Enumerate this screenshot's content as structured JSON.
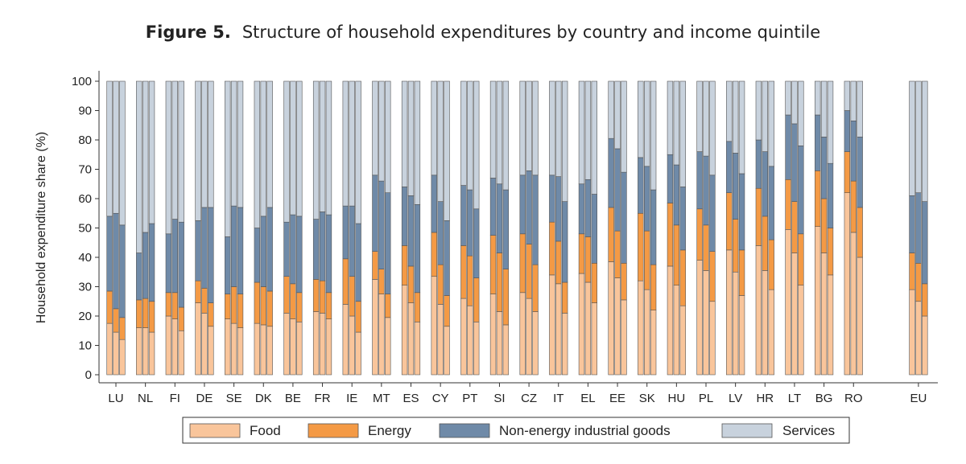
{
  "figure_label": "Figure 5.",
  "title": "Structure of household expenditures by country and income quintile",
  "chart_data": {
    "type": "bar",
    "stacked": true,
    "bars_per_category": 3,
    "categories": [
      "LU",
      "NL",
      "FI",
      "DE",
      "SE",
      "DK",
      "BE",
      "FR",
      "IE",
      "MT",
      "ES",
      "CY",
      "PT",
      "SI",
      "CZ",
      "IT",
      "EL",
      "EE",
      "SK",
      "HU",
      "PL",
      "LV",
      "HR",
      "LT",
      "BG",
      "RO",
      "EU"
    ],
    "ylabel": "Household expenditure share (%)",
    "ylim": [
      0,
      100
    ],
    "yticks": [
      0,
      10,
      20,
      30,
      40,
      50,
      60,
      70,
      80,
      90,
      100
    ],
    "grid": false,
    "legend_position": "bottom",
    "cumulative_series": [
      {
        "name": "Food",
        "color": "#f9c59b",
        "values": [
          [
            17.5,
            14.5,
            12
          ],
          [
            16,
            16,
            14.5
          ],
          [
            20,
            19,
            15
          ],
          [
            24.5,
            21,
            16.5
          ],
          [
            19,
            17.5,
            16
          ],
          [
            17.5,
            17,
            16.5
          ],
          [
            21,
            19,
            18
          ],
          [
            21.5,
            21,
            19
          ],
          [
            24,
            20,
            14.5
          ],
          [
            32.5,
            27.5,
            19.5
          ],
          [
            30.5,
            24.5,
            18
          ],
          [
            33.5,
            24,
            16.5
          ],
          [
            26,
            23.5,
            18
          ],
          [
            27.5,
            21.5,
            17
          ],
          [
            28,
            26,
            21.5
          ],
          [
            34,
            31,
            21
          ],
          [
            34.5,
            31.5,
            24.5
          ],
          [
            38.5,
            33,
            25.5
          ],
          [
            32,
            29,
            22
          ],
          [
            37,
            30.5,
            23.5
          ],
          [
            39,
            35.5,
            25
          ],
          [
            42.5,
            35,
            27
          ],
          [
            44,
            35.5,
            29
          ],
          [
            49.5,
            41.5,
            30.5
          ],
          [
            50.5,
            41.5,
            34
          ],
          [
            62,
            48.5,
            40
          ],
          [
            29,
            25,
            20
          ]
        ]
      },
      {
        "name": "Energy",
        "color": "#f49a45",
        "values": [
          [
            28.5,
            22.5,
            19.5
          ],
          [
            25.5,
            26,
            25
          ],
          [
            28,
            28,
            23
          ],
          [
            32,
            29.5,
            24.5
          ],
          [
            27.5,
            30,
            27.5
          ],
          [
            31.5,
            30,
            28.5
          ],
          [
            33.5,
            31,
            28
          ],
          [
            32.5,
            32,
            28
          ],
          [
            39.5,
            33.5,
            25
          ],
          [
            42,
            36,
            27.5
          ],
          [
            44,
            37,
            28
          ],
          [
            48.5,
            37.5,
            27
          ],
          [
            44,
            40.5,
            33
          ],
          [
            47.5,
            41.5,
            36
          ],
          [
            48,
            44.5,
            37.5
          ],
          [
            52,
            45.5,
            31.5
          ],
          [
            48,
            47,
            38
          ],
          [
            57,
            49,
            38
          ],
          [
            55,
            49,
            37.5
          ],
          [
            58.5,
            51,
            42.5
          ],
          [
            56.5,
            51,
            42
          ],
          [
            62,
            53,
            42.5
          ],
          [
            63.5,
            54,
            46
          ],
          [
            66.5,
            59,
            48
          ],
          [
            69.5,
            60,
            50
          ],
          [
            76,
            66,
            57
          ],
          [
            41.5,
            38,
            31
          ]
        ]
      },
      {
        "name": "Non-energy industrial goods",
        "color": "#6f8aa8",
        "values": [
          [
            54,
            55,
            51
          ],
          [
            41.5,
            48.5,
            51.5
          ],
          [
            48,
            53,
            52
          ],
          [
            52.5,
            57,
            57
          ],
          [
            47,
            57.5,
            57
          ],
          [
            50,
            54,
            57
          ],
          [
            52,
            54.5,
            54
          ],
          [
            53,
            55.5,
            54.5
          ],
          [
            57.5,
            57.5,
            51.5
          ],
          [
            68,
            66,
            62
          ],
          [
            64,
            61,
            58
          ],
          [
            68,
            59,
            52.5
          ],
          [
            64.5,
            63,
            56.5
          ],
          [
            67,
            65,
            63
          ],
          [
            68,
            69.5,
            68
          ],
          [
            68,
            67.5,
            59
          ],
          [
            65,
            66.5,
            61.5
          ],
          [
            80.5,
            77,
            69
          ],
          [
            74,
            71,
            63
          ],
          [
            75,
            71.5,
            64
          ],
          [
            76,
            74.5,
            68
          ],
          [
            79.5,
            75.5,
            68.5
          ],
          [
            80,
            76,
            71
          ],
          [
            88.5,
            85.5,
            78
          ],
          [
            88.5,
            81,
            72
          ],
          [
            90,
            86.5,
            81
          ],
          [
            61,
            62,
            59
          ]
        ]
      },
      {
        "name": "Services",
        "color": "#c8d2dd",
        "values": [
          [
            100,
            100,
            100
          ],
          [
            100,
            100,
            100
          ],
          [
            100,
            100,
            100
          ],
          [
            100,
            100,
            100
          ],
          [
            100,
            100,
            100
          ],
          [
            100,
            100,
            100
          ],
          [
            100,
            100,
            100
          ],
          [
            100,
            100,
            100
          ],
          [
            100,
            100,
            100
          ],
          [
            100,
            100,
            100
          ],
          [
            100,
            100,
            100
          ],
          [
            100,
            100,
            100
          ],
          [
            100,
            100,
            100
          ],
          [
            100,
            100,
            100
          ],
          [
            100,
            100,
            100
          ],
          [
            100,
            100,
            100
          ],
          [
            100,
            100,
            100
          ],
          [
            100,
            100,
            100
          ],
          [
            100,
            100,
            100
          ],
          [
            100,
            100,
            100
          ],
          [
            100,
            100,
            100
          ],
          [
            100,
            100,
            100
          ],
          [
            100,
            100,
            100
          ],
          [
            100,
            100,
            100
          ],
          [
            100,
            100,
            100
          ],
          [
            100,
            100,
            100
          ],
          [
            100,
            100,
            100
          ]
        ]
      }
    ]
  }
}
